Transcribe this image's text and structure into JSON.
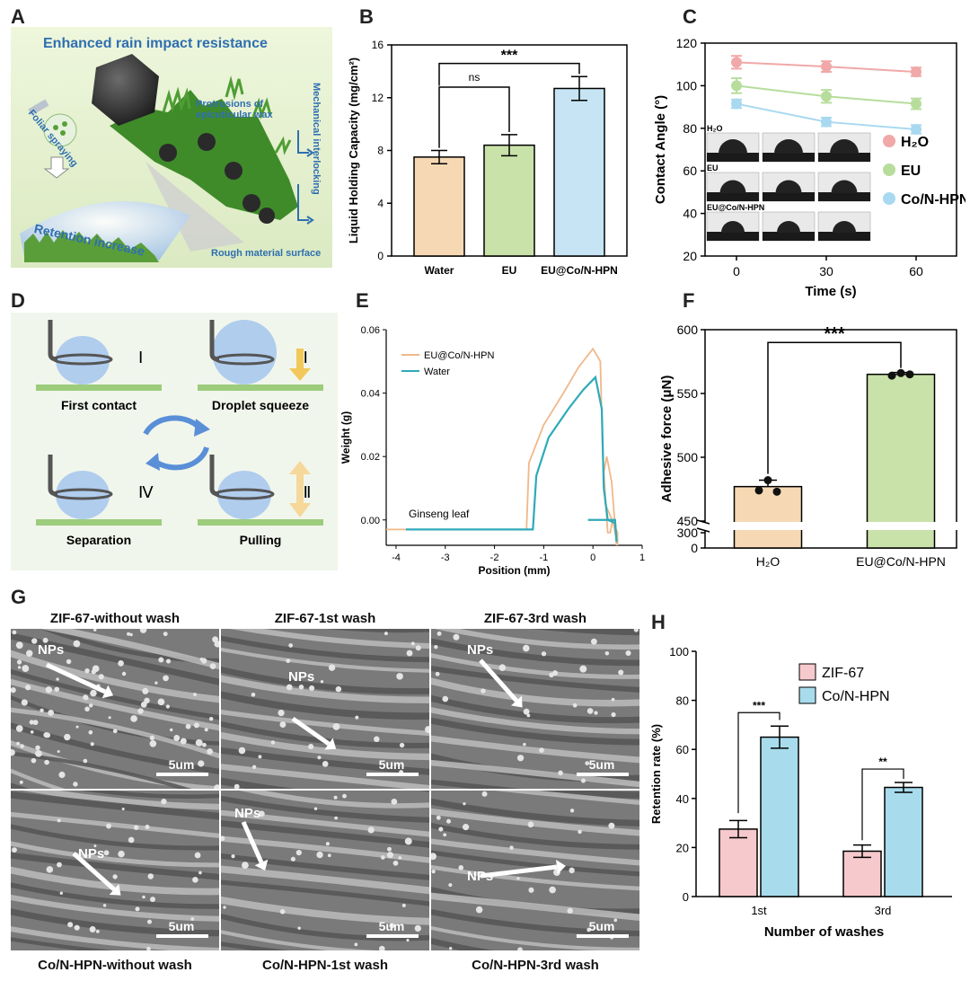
{
  "panels": {
    "A": {
      "letter": "A",
      "title": "Enhanced rain impact resistance",
      "foliar": "Foliar spraying",
      "protrusions": "Protrusions of epicuticular wax",
      "retention": "Retention increase",
      "rough": "Rough material surface",
      "mechanical": "Mechanical interlocking"
    },
    "B": {
      "letter": "B"
    },
    "C": {
      "letter": "C",
      "inset_labels": [
        "H₂O",
        "EU",
        "EU@Co/N-HPN"
      ]
    },
    "D": {
      "letter": "D",
      "steps": [
        {
          "numeral": "Ⅰ",
          "label": "First contact"
        },
        {
          "numeral": "Ⅱ",
          "label": "Droplet squeeze"
        },
        {
          "numeral": "Ⅳ",
          "label": "Separation"
        },
        {
          "numeral": "Ⅲ",
          "label": "Pulling"
        }
      ]
    },
    "E": {
      "letter": "E",
      "annotation": "Ginseng leaf"
    },
    "F": {
      "letter": "F"
    },
    "G": {
      "letter": "G",
      "nps": "NPs",
      "scale": "5um",
      "titles": [
        "ZIF-67-without wash",
        "ZIF-67-1st wash",
        "ZIF-67-3rd wash"
      ],
      "captions": [
        "Co/N-HPN-without wash",
        "Co/N-HPN-1st wash",
        "Co/N-HPN-3rd wash"
      ]
    },
    "H": {
      "letter": "H"
    }
  },
  "chart_data": [
    {
      "id": "B",
      "type": "bar",
      "categories": [
        "Water",
        "EU",
        "EU@Co/N-HPN"
      ],
      "values": [
        7.5,
        8.4,
        12.7
      ],
      "errors": [
        0.5,
        0.8,
        0.9
      ],
      "colors": [
        "#f6d9b4",
        "#c9e2a9",
        "#c6e4f4"
      ],
      "ylabel": "Liquid Holding Capacity (mg/cm²)",
      "ylim": [
        0,
        16
      ],
      "yticks": [
        "0",
        "4",
        "8",
        "12",
        "16"
      ],
      "significance": [
        {
          "label": "ns"
        },
        {
          "label": "***"
        }
      ]
    },
    {
      "id": "C",
      "type": "line",
      "x": [
        0,
        30,
        60
      ],
      "xticks": [
        "0",
        "30",
        "60"
      ],
      "series": [
        {
          "name": "H₂O",
          "values": [
            111,
            109,
            106.5
          ],
          "errors": [
            3,
            2.5,
            2
          ],
          "color": "#f0a8a8"
        },
        {
          "name": "EU",
          "values": [
            100,
            95,
            91.5
          ],
          "errors": [
            3.5,
            3,
            2.5
          ],
          "color": "#b7dd9c"
        },
        {
          "name": "Co/N-HPN",
          "values": [
            91.5,
            83,
            79.5
          ],
          "errors": [
            2,
            2,
            2
          ],
          "color": "#a9d9f0"
        }
      ],
      "xlabel": "Time (s)",
      "ylabel": "Contact Angle (°)",
      "ylim": [
        20,
        120
      ],
      "yticks": [
        "20",
        "40",
        "60",
        "80",
        "100",
        "120"
      ]
    },
    {
      "id": "E",
      "type": "line",
      "series": [
        {
          "name": "EU@Co/N-HPN",
          "color": "#f0b88a"
        },
        {
          "name": "Water",
          "color": "#2eaab8"
        }
      ],
      "xlabel": "Position (mm)",
      "ylabel": "Weight (g)",
      "xlim": [
        -4.2,
        1
      ],
      "ylim": [
        -0.008,
        0.06
      ],
      "xticks": [
        "-4",
        "-3",
        "-2",
        "-1",
        "0",
        "1"
      ],
      "yticks": [
        "0.00",
        "0.02",
        "0.04",
        "0.06"
      ]
    },
    {
      "id": "F",
      "type": "bar",
      "categories": [
        "H₂O",
        "EU@Co/N-HPN"
      ],
      "values": [
        477,
        565
      ],
      "errors": [
        5,
        1.5
      ],
      "points": [
        [
          474,
          482,
          473
        ],
        [
          564,
          566,
          565
        ]
      ],
      "colors": [
        "#f6d9b4",
        "#c9e2a9"
      ],
      "ylabel": "Adhesive force (μN)",
      "yticks": [
        "0",
        "300",
        "450",
        "500",
        "550",
        "600"
      ],
      "significance": "***"
    },
    {
      "id": "H",
      "type": "bar",
      "categories": [
        "1st",
        "3rd"
      ],
      "series": [
        {
          "name": "ZIF-67",
          "values": [
            27.5,
            18.5
          ],
          "errors": [
            3.5,
            2.5
          ],
          "color": "#f6c9cc"
        },
        {
          "name": "Co/N-HPN",
          "values": [
            65,
            44.5
          ],
          "errors": [
            4.5,
            2
          ],
          "color": "#a8dcec"
        }
      ],
      "xlabel": "Number of washes",
      "ylabel": "Retention rate (%)",
      "ylim": [
        0,
        100
      ],
      "yticks": [
        "0",
        "20",
        "40",
        "60",
        "80",
        "100"
      ],
      "significance": [
        "***",
        "**"
      ]
    }
  ]
}
